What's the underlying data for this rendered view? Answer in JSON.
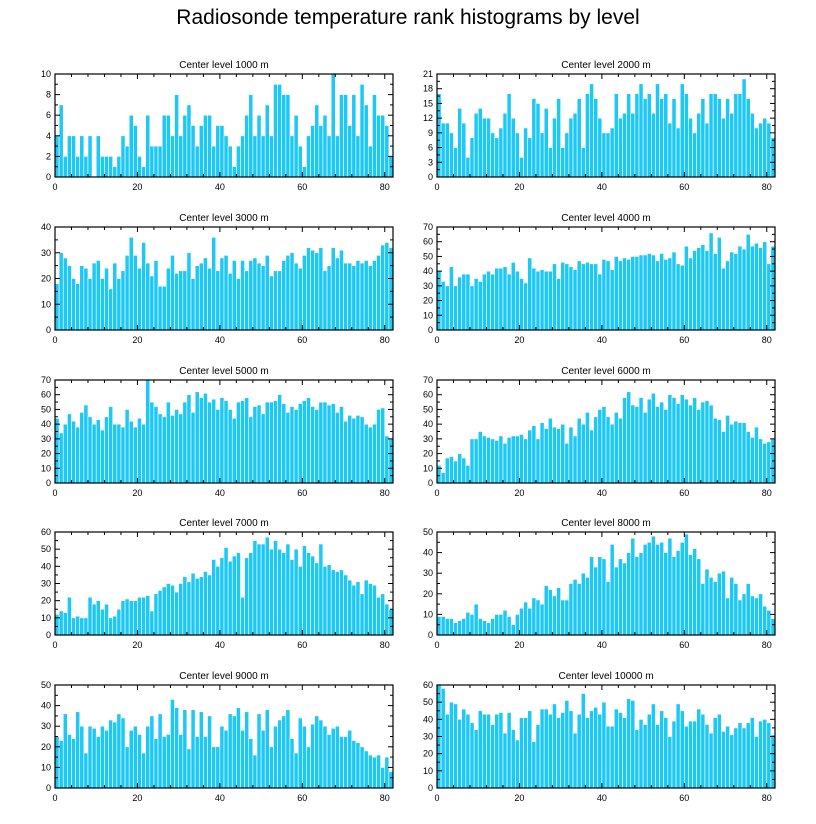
{
  "title": "Radiosonde temperature rank histograms by level",
  "colors": {
    "bar": "#1ec8f5",
    "bar_edge": "#ffffff",
    "axis": "#000000"
  },
  "chart_data": [
    {
      "type": "bar",
      "title": "Center level 1000 m",
      "xlabel": "",
      "ylabel": "",
      "xlim": [
        0,
        82
      ],
      "xticks": [
        0,
        20,
        40,
        60,
        80
      ],
      "ylim": [
        0,
        10
      ],
      "yticks": [
        0,
        2,
        4,
        6,
        8,
        10
      ],
      "values": [
        4,
        7,
        2,
        4,
        4,
        2,
        4,
        2,
        4,
        0,
        4,
        2,
        2,
        2,
        1,
        2,
        4,
        3,
        6,
        5,
        2,
        1,
        6,
        3,
        3,
        3,
        6,
        6,
        4,
        8,
        4,
        6,
        7,
        5,
        3,
        5,
        6,
        6,
        3,
        5,
        5,
        4,
        3,
        1,
        3,
        4,
        6,
        8,
        4,
        6,
        4,
        7,
        4,
        9,
        9,
        8,
        8,
        4,
        6,
        3,
        1,
        4,
        5,
        7,
        5,
        6,
        4,
        10,
        4,
        8,
        8,
        5,
        8,
        4,
        9,
        7,
        3,
        8,
        6,
        6,
        5,
        2
      ]
    },
    {
      "type": "bar",
      "title": "Center level 2000 m",
      "xlabel": "",
      "ylabel": "",
      "xlim": [
        0,
        82
      ],
      "xticks": [
        0,
        20,
        40,
        60,
        80
      ],
      "ylim": [
        0,
        21
      ],
      "yticks": [
        0,
        3,
        6,
        9,
        12,
        15,
        18,
        21
      ],
      "values": [
        17,
        11,
        11,
        9,
        6,
        14,
        11,
        4,
        8,
        13,
        14,
        12,
        12,
        9,
        8,
        10,
        13,
        17,
        12,
        9,
        4,
        10,
        8,
        16,
        15,
        9,
        14,
        6,
        12,
        16,
        6,
        9,
        12,
        13,
        16,
        6,
        17,
        19,
        16,
        12,
        9,
        9,
        10,
        17,
        12,
        13,
        17,
        13,
        17,
        19,
        16,
        17,
        13,
        19,
        16,
        17,
        11,
        16,
        10,
        19,
        17,
        12,
        9,
        13,
        16,
        11,
        17,
        17,
        16,
        12,
        16,
        13,
        17,
        17,
        20,
        16,
        13,
        10,
        11,
        12,
        11,
        8
      ]
    },
    {
      "type": "bar",
      "title": "Center level 3000 m",
      "xlabel": "",
      "ylabel": "",
      "xlim": [
        0,
        82
      ],
      "xticks": [
        0,
        20,
        40,
        60,
        80
      ],
      "ylim": [
        0,
        40
      ],
      "yticks": [
        0,
        10,
        20,
        30,
        40
      ],
      "values": [
        18,
        30,
        28,
        25,
        20,
        18,
        25,
        24,
        20,
        26,
        27,
        20,
        24,
        16,
        26,
        20,
        23,
        29,
        36,
        29,
        24,
        34,
        26,
        21,
        27,
        17,
        17,
        24,
        29,
        22,
        23,
        23,
        30,
        20,
        25,
        26,
        28,
        24,
        36,
        23,
        28,
        29,
        22,
        27,
        20,
        27,
        23,
        27,
        28,
        26,
        25,
        29,
        21,
        23,
        23,
        27,
        29,
        30,
        26,
        24,
        29,
        32,
        31,
        30,
        32,
        23,
        25,
        32,
        28,
        31,
        26,
        26,
        25,
        27,
        26,
        27,
        25,
        27,
        29,
        33,
        34,
        32
      ]
    },
    {
      "type": "bar",
      "title": "Center level 4000 m",
      "xlabel": "",
      "ylabel": "",
      "xlim": [
        0,
        82
      ],
      "xticks": [
        0,
        20,
        40,
        60,
        80
      ],
      "ylim": [
        0,
        70
      ],
      "yticks": [
        0,
        10,
        20,
        30,
        40,
        50,
        60,
        70
      ],
      "values": [
        40,
        33,
        30,
        43,
        30,
        36,
        38,
        38,
        30,
        35,
        33,
        38,
        40,
        38,
        42,
        42,
        43,
        38,
        46,
        40,
        35,
        32,
        49,
        42,
        40,
        41,
        40,
        40,
        45,
        35,
        46,
        45,
        43,
        41,
        47,
        45,
        46,
        45,
        45,
        38,
        48,
        47,
        41,
        50,
        47,
        49,
        48,
        50,
        50,
        51,
        51,
        52,
        51,
        47,
        52,
        48,
        49,
        53,
        45,
        44,
        57,
        49,
        54,
        56,
        58,
        54,
        66,
        52,
        63,
        42,
        47,
        53,
        52,
        57,
        55,
        65,
        57,
        59,
        56,
        60,
        45,
        57
      ]
    },
    {
      "type": "bar",
      "title": "Center level 5000 m",
      "xlabel": "",
      "ylabel": "",
      "xlim": [
        0,
        82
      ],
      "xticks": [
        0,
        20,
        40,
        60,
        80
      ],
      "ylim": [
        0,
        70
      ],
      "yticks": [
        0,
        10,
        20,
        30,
        40,
        50,
        60,
        70
      ],
      "values": [
        44,
        34,
        40,
        47,
        42,
        38,
        48,
        53,
        45,
        40,
        43,
        36,
        45,
        52,
        40,
        40,
        38,
        50,
        42,
        38,
        44,
        40,
        70,
        55,
        52,
        47,
        45,
        55,
        46,
        50,
        47,
        55,
        60,
        48,
        62,
        58,
        61,
        55,
        57,
        50,
        58,
        56,
        50,
        44,
        55,
        56,
        58,
        45,
        52,
        53,
        47,
        55,
        55,
        56,
        60,
        54,
        48,
        52,
        50,
        54,
        56,
        58,
        52,
        50,
        55,
        55,
        53,
        54,
        48,
        52,
        42,
        46,
        44,
        46,
        45,
        40,
        38,
        40,
        50,
        51,
        32,
        30
      ]
    },
    {
      "type": "bar",
      "title": "Center level 6000 m",
      "xlabel": "",
      "ylabel": "",
      "xlim": [
        0,
        82
      ],
      "xticks": [
        0,
        20,
        40,
        60,
        80
      ],
      "ylim": [
        0,
        70
      ],
      "yticks": [
        0,
        10,
        20,
        30,
        40,
        50,
        60,
        70
      ],
      "values": [
        12,
        7,
        17,
        18,
        15,
        20,
        17,
        12,
        30,
        30,
        35,
        32,
        31,
        30,
        29,
        32,
        27,
        31,
        32,
        32,
        33,
        30,
        36,
        39,
        30,
        41,
        37,
        44,
        38,
        37,
        40,
        27,
        38,
        32,
        44,
        40,
        48,
        36,
        45,
        50,
        52,
        45,
        40,
        48,
        44,
        58,
        62,
        53,
        52,
        58,
        48,
        57,
        61,
        52,
        55,
        50,
        60,
        58,
        54,
        60,
        57,
        53,
        58,
        50,
        55,
        56,
        53,
        44,
        43,
        35,
        46,
        40,
        42,
        41,
        41,
        35,
        31,
        38,
        30,
        27,
        28,
        30
      ]
    },
    {
      "type": "bar",
      "title": "Center level 7000 m",
      "xlabel": "",
      "ylabel": "",
      "xlim": [
        0,
        82
      ],
      "xticks": [
        0,
        20,
        40,
        60,
        80
      ],
      "ylim": [
        0,
        60
      ],
      "yticks": [
        0,
        10,
        20,
        30,
        40,
        50,
        60
      ],
      "values": [
        12,
        14,
        13,
        22,
        10,
        11,
        10,
        10,
        22,
        18,
        20,
        15,
        18,
        10,
        11,
        15,
        20,
        21,
        20,
        20,
        22,
        22,
        23,
        14,
        24,
        26,
        28,
        30,
        29,
        25,
        30,
        34,
        31,
        36,
        33,
        34,
        37,
        35,
        44,
        40,
        45,
        51,
        43,
        46,
        48,
        22,
        45,
        48,
        55,
        53,
        53,
        57,
        50,
        55,
        50,
        48,
        53,
        44,
        50,
        40,
        52,
        48,
        46,
        42,
        53,
        40,
        41,
        38,
        37,
        38,
        35,
        32,
        29,
        31,
        24,
        32,
        30,
        29,
        22,
        24,
        18,
        15
      ]
    },
    {
      "type": "bar",
      "title": "Center level 8000 m",
      "xlabel": "",
      "ylabel": "",
      "xlim": [
        0,
        82
      ],
      "xticks": [
        0,
        20,
        40,
        60,
        80
      ],
      "ylim": [
        0,
        50
      ],
      "yticks": [
        0,
        10,
        20,
        30,
        40,
        50
      ],
      "values": [
        9,
        9,
        8,
        8,
        6,
        7,
        8,
        11,
        10,
        15,
        8,
        7,
        6,
        8,
        10,
        10,
        12,
        9,
        5,
        10,
        13,
        16,
        13,
        18,
        17,
        15,
        24,
        22,
        19,
        23,
        17,
        17,
        25,
        27,
        25,
        30,
        28,
        38,
        33,
        38,
        37,
        26,
        44,
        33,
        37,
        35,
        40,
        47,
        38,
        40,
        44,
        45,
        48,
        44,
        45,
        40,
        47,
        38,
        41,
        45,
        49,
        39,
        42,
        37,
        25,
        32,
        28,
        26,
        30,
        31,
        18,
        28,
        25,
        17,
        20,
        25,
        19,
        18,
        20,
        14,
        12,
        8
      ]
    },
    {
      "type": "bar",
      "title": "Center level 9000 m",
      "xlabel": "",
      "ylabel": "",
      "xlim": [
        0,
        82
      ],
      "xticks": [
        0,
        20,
        40,
        60,
        80
      ],
      "ylim": [
        0,
        50
      ],
      "yticks": [
        0,
        10,
        20,
        30,
        40,
        50
      ],
      "values": [
        25,
        23,
        36,
        26,
        24,
        37,
        30,
        17,
        30,
        29,
        25,
        30,
        28,
        33,
        32,
        36,
        34,
        20,
        28,
        30,
        26,
        17,
        30,
        35,
        24,
        36,
        25,
        26,
        43,
        39,
        26,
        38,
        19,
        38,
        25,
        37,
        25,
        35,
        20,
        20,
        30,
        28,
        36,
        35,
        39,
        28,
        37,
        24,
        16,
        36,
        28,
        38,
        20,
        30,
        33,
        35,
        38,
        24,
        17,
        34,
        30,
        20,
        31,
        35,
        33,
        30,
        26,
        29,
        30,
        25,
        25,
        28,
        23,
        22,
        20,
        18,
        16,
        15,
        16,
        10,
        15,
        8
      ]
    },
    {
      "type": "bar",
      "title": "Center level 10000 m",
      "xlabel": "",
      "ylabel": "",
      "xlim": [
        0,
        82
      ],
      "xticks": [
        0,
        20,
        40,
        60,
        80
      ],
      "ylim": [
        0,
        60
      ],
      "yticks": [
        0,
        10,
        20,
        30,
        40,
        50,
        60
      ],
      "values": [
        60,
        58,
        43,
        50,
        49,
        40,
        46,
        43,
        38,
        34,
        45,
        43,
        43,
        37,
        43,
        44,
        32,
        44,
        34,
        28,
        41,
        41,
        45,
        27,
        37,
        46,
        46,
        43,
        49,
        41,
        44,
        51,
        45,
        32,
        43,
        55,
        41,
        45,
        47,
        43,
        50,
        36,
        36,
        46,
        44,
        41,
        52,
        51,
        34,
        40,
        37,
        43,
        49,
        37,
        45,
        41,
        30,
        39,
        49,
        45,
        36,
        39,
        39,
        46,
        43,
        37,
        32,
        41,
        43,
        33,
        36,
        31,
        35,
        38,
        35,
        38,
        41,
        30,
        39,
        40,
        38,
        31
      ]
    }
  ]
}
